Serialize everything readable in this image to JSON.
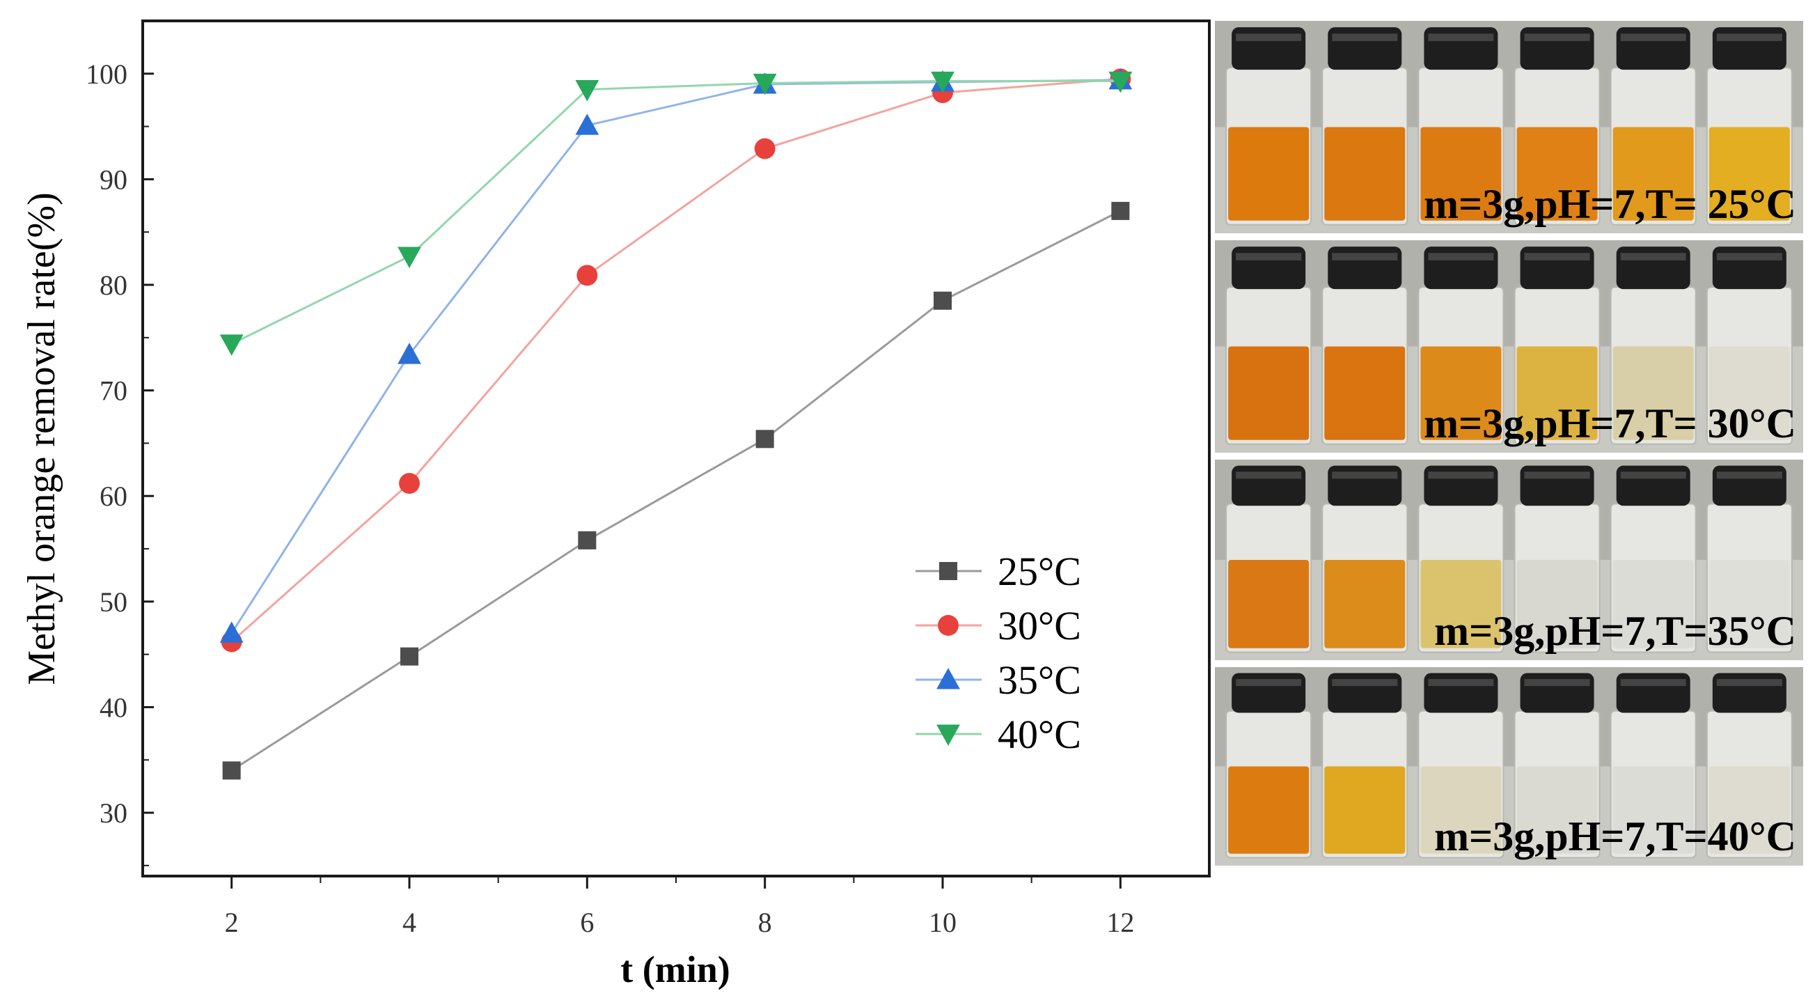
{
  "chart_data": {
    "type": "line",
    "xlabel": "t (min)",
    "ylabel": "Methyl orange removal rate(%)",
    "x": [
      2,
      4,
      6,
      8,
      10,
      12
    ],
    "xlim": [
      1,
      13
    ],
    "ylim": [
      24,
      105
    ],
    "xticks": [
      2,
      4,
      6,
      8,
      10,
      12
    ],
    "yticks": [
      30,
      40,
      50,
      60,
      70,
      80,
      90,
      100
    ],
    "grid": false,
    "legend_position": "lower-right",
    "series": [
      {
        "name": "25°C",
        "marker": "square",
        "color": "#4d4d4d",
        "line_color": "#9a9a9a",
        "values": [
          34.0,
          44.8,
          55.8,
          65.4,
          78.5,
          87.0
        ]
      },
      {
        "name": "30°C",
        "marker": "circle",
        "color": "#e8413c",
        "line_color": "#f4a3a0",
        "values": [
          46.2,
          61.2,
          80.9,
          92.9,
          98.2,
          99.5
        ]
      },
      {
        "name": "35°C",
        "marker": "triangle-up",
        "color": "#2b6fd6",
        "line_color": "#8fb4ea",
        "values": [
          47.0,
          73.4,
          95.1,
          99.0,
          99.2,
          99.4
        ]
      },
      {
        "name": "40°C",
        "marker": "triangle-down",
        "color": "#27a85a",
        "line_color": "#93d6ad",
        "values": [
          74.4,
          82.7,
          98.5,
          99.1,
          99.3,
          99.3
        ]
      }
    ]
  },
  "photo_panels": [
    {
      "caption": "m=3g,pH=7,T= 25°C",
      "liquid_colors": [
        "#dc7a0e",
        "#db7810",
        "#dc7b12",
        "#df8114",
        "#e19a1c",
        "#e4ae22"
      ]
    },
    {
      "caption": "m=3g,pH=7,T= 30°C",
      "liquid_colors": [
        "#d8710f",
        "#d97411",
        "#dc8a1a",
        "#dcb241",
        "#d8cfa8",
        "#dedbd0"
      ]
    },
    {
      "caption": "m=3g,pH=7,T=35°C",
      "liquid_colors": [
        "#db7816",
        "#dc8c1b",
        "#dbc36e",
        "#d9d8d0",
        "#dcdcd6",
        "#dfdfd9"
      ]
    },
    {
      "caption": "m=3g,pH=7,T=40°C",
      "liquid_colors": [
        "#dc7c10",
        "#e0a820",
        "#dcd6be",
        "#dadad3",
        "#dcdcd6",
        "#dedbd1"
      ]
    }
  ]
}
